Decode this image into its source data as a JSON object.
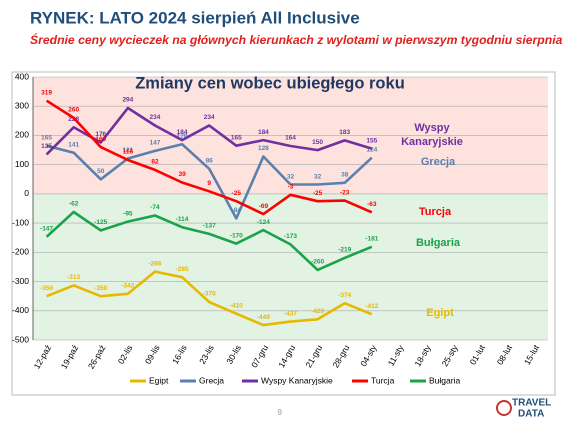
{
  "title": "RYNEK: LATO 2024 sierpień All Inclusive",
  "subtitle": "Średnie ceny wycieczek na głównych kierunkach z wylotami w pierwszym tygodniu sierpnia",
  "chart_data": {
    "type": "line",
    "title": "Zmiany cen wobec ubiegłego roku",
    "categories": [
      "12-paź",
      "19-paź",
      "26-paź",
      "02-lis",
      "09-lis",
      "16-lis",
      "23-lis",
      "30-lis",
      "07-gru",
      "14-gru",
      "21-gru",
      "28-gru",
      "04-sty",
      "11-sty",
      "18-sty",
      "25-sty",
      "01-lut",
      "08-lut",
      "15-lut"
    ],
    "series": [
      {
        "name": "Egipt",
        "color": "#e6b800",
        "values": [
          -350,
          -313,
          -350,
          -342,
          -266,
          -285,
          -370,
          -410,
          -449,
          -437,
          -429,
          -374,
          -412,
          null,
          null,
          null,
          null,
          null,
          null
        ]
      },
      {
        "name": "Grecja",
        "color": "#5b7fae",
        "values": [
          165,
          141,
          50,
          121,
          147,
          170,
          86,
          -84,
          128,
          32,
          32,
          38,
          124,
          null,
          null,
          null,
          null,
          null,
          null
        ]
      },
      {
        "name": "Wyspy Kanaryjskie",
        "color": "#7030a0",
        "values": [
          135,
          228,
          176,
          294,
          234,
          184,
          234,
          165,
          184,
          164,
          150,
          183,
          155,
          null,
          null,
          null,
          null,
          null,
          null
        ]
      },
      {
        "name": "Turcja",
        "color": "#ff0000",
        "values": [
          319,
          260,
          160,
          116,
          82,
          39,
          9,
          -25,
          -69,
          -3,
          -25,
          -23,
          -63,
          null,
          null,
          null,
          null,
          null,
          null
        ]
      },
      {
        "name": "Bułgaria",
        "color": "#1aa34a",
        "values": [
          -147,
          -62,
          -125,
          -95,
          -74,
          -114,
          -137,
          -170,
          -124,
          -173,
          -260,
          -219,
          -181,
          null,
          null,
          null,
          null,
          null,
          null
        ]
      }
    ],
    "annotations": [
      "Wyspy",
      "Kanaryjskie",
      "Grecja",
      "Turcja",
      "Bułgaria",
      "Egipt"
    ],
    "ylim": [
      -500,
      400
    ],
    "yticks": [
      -500,
      -400,
      -300,
      -200,
      -100,
      0,
      100,
      200,
      300,
      400
    ],
    "grid": true,
    "legend": "bottom"
  },
  "footer": {
    "page": "9",
    "logo": [
      "TRAVEL",
      "DATA"
    ]
  }
}
